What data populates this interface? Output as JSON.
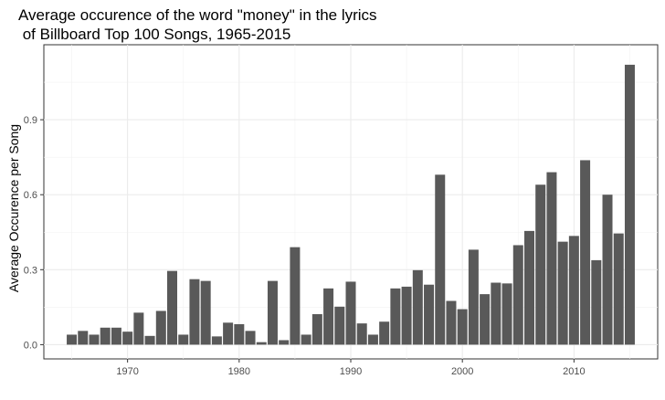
{
  "chart_data": {
    "type": "bar",
    "title": "Average occurence of the word \"money\" in the lyrics\n of Billboard Top 100 Songs, 1965-2015",
    "xlabel": "",
    "ylabel": "Average Occurence per Song",
    "xlim": [
      1962.5,
      2017.5
    ],
    "ylim": [
      -0.057,
      1.2
    ],
    "x_ticks": [
      1970,
      1980,
      1990,
      2000,
      2010
    ],
    "y_ticks": [
      0.0,
      0.3,
      0.6,
      0.9
    ],
    "y_tick_labels": [
      "0.0",
      "0.3",
      "0.6",
      "0.9"
    ],
    "grid": true,
    "bar_color": "#595959",
    "x": [
      1965,
      1966,
      1967,
      1968,
      1969,
      1970,
      1971,
      1972,
      1973,
      1974,
      1975,
      1976,
      1977,
      1978,
      1979,
      1980,
      1981,
      1982,
      1983,
      1984,
      1985,
      1986,
      1987,
      1988,
      1989,
      1990,
      1991,
      1992,
      1993,
      1994,
      1995,
      1996,
      1997,
      1998,
      1999,
      2000,
      2001,
      2002,
      2003,
      2004,
      2005,
      2006,
      2007,
      2008,
      2009,
      2010,
      2011,
      2012,
      2013,
      2014,
      2015
    ],
    "values": [
      0.04,
      0.055,
      0.04,
      0.068,
      0.068,
      0.052,
      0.128,
      0.035,
      0.135,
      0.295,
      0.04,
      0.262,
      0.255,
      0.033,
      0.088,
      0.082,
      0.055,
      0.01,
      0.255,
      0.018,
      0.39,
      0.04,
      0.122,
      0.225,
      0.152,
      0.252,
      0.085,
      0.04,
      0.092,
      0.225,
      0.232,
      0.298,
      0.24,
      0.68,
      0.175,
      0.142,
      0.38,
      0.202,
      0.248,
      0.245,
      0.398,
      0.455,
      0.64,
      0.69,
      0.412,
      0.435,
      0.738,
      0.338,
      0.6,
      0.445,
      1.12
    ]
  }
}
